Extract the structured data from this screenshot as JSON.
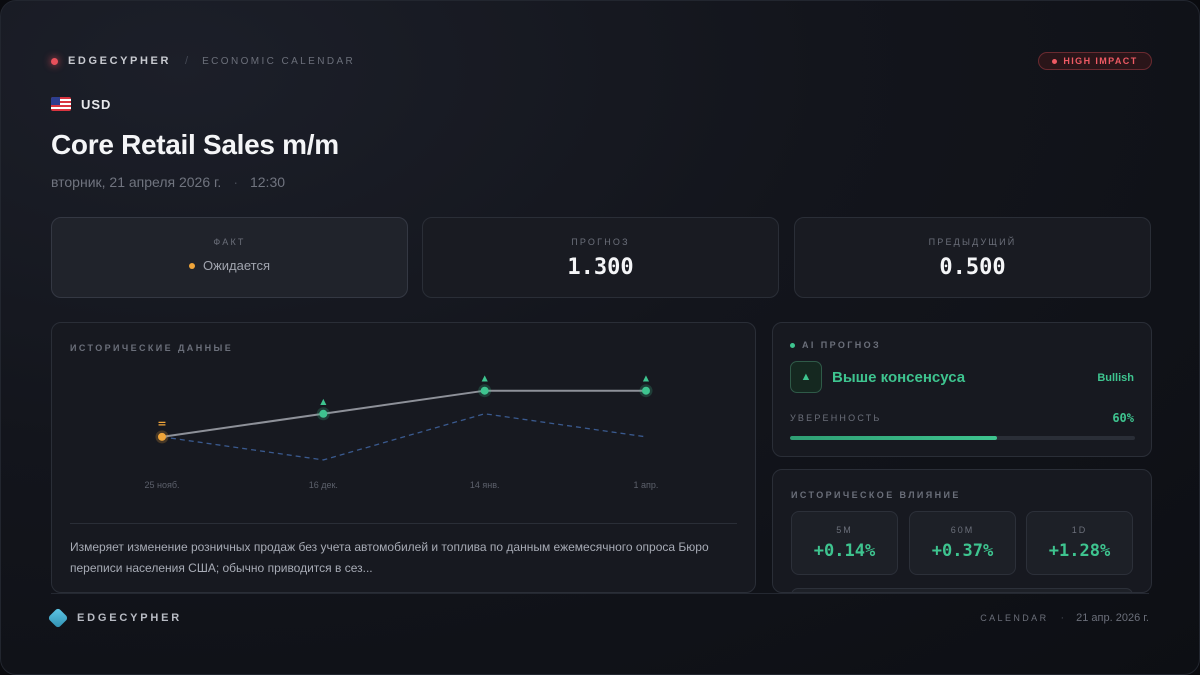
{
  "header": {
    "brand": "EDGECYPHER",
    "separator": "/",
    "section": "ECONOMIC CALENDAR",
    "impact_badge": "HIGH IMPACT",
    "impact_color": "#ef5a64"
  },
  "event": {
    "flag_icon": "us-flag-icon",
    "currency": "USD",
    "title": "Core Retail Sales m/m",
    "date": "вторник, 21 апреля 2026 г.",
    "dot": "·",
    "time": "12:30"
  },
  "stats": {
    "actual_label": "ФАКТ",
    "actual_value": "Ожидается",
    "forecast_label": "ПРОГНОЗ",
    "forecast_value": "1.300",
    "previous_label": "ПРЕДЫДУЩИЙ",
    "previous_value": "0.500"
  },
  "history": {
    "label": "ИСТОРИЧЕСКИЕ ДАННЫЕ",
    "description": "Измеряет изменение розничных продаж без учета автомобилей и топлива по данным ежемесячного опроса Бюро переписи населения США; обычно приводится в сез..."
  },
  "chart_data": {
    "type": "line",
    "categories": [
      "25 нояб.",
      "16 дек.",
      "14 янв.",
      "1 апр."
    ],
    "series": [
      {
        "values": [
          0.4,
          0.9,
          1.4,
          1.4
        ],
        "color": "#8e9199",
        "markers": [
          "=",
          "▲",
          "▲",
          "▲"
        ]
      },
      {
        "values": [
          0.4,
          -0.1,
          0.9,
          0.4
        ],
        "color": "#3a5a8f",
        "style": "dashed"
      }
    ],
    "ylim": [
      -0.6,
      2.0
    ],
    "grid": false,
    "legend": "none"
  },
  "ai": {
    "label": "AI ПРОГНОЗ",
    "arrow_icon": "triangle-up-icon",
    "verdict": "Выше консенсуса",
    "bias": "Bullish",
    "confidence_label": "УВЕРЕННОСТЬ",
    "confidence_value": "60%",
    "confidence": 0.6,
    "accent": "#3ec48f"
  },
  "impact": {
    "label": "ИСТОРИЧЕСКОЕ ВЛИЯНИЕ",
    "items": [
      {
        "label": "5M",
        "value": "+0.14%"
      },
      {
        "label": "60M",
        "value": "+0.37%"
      },
      {
        "label": "1D",
        "value": "+1.28%"
      }
    ]
  },
  "footer": {
    "brand": "EDGECYPHER",
    "section": "CALENDAR",
    "dot": "·",
    "date": "21 апр. 2026 г."
  }
}
